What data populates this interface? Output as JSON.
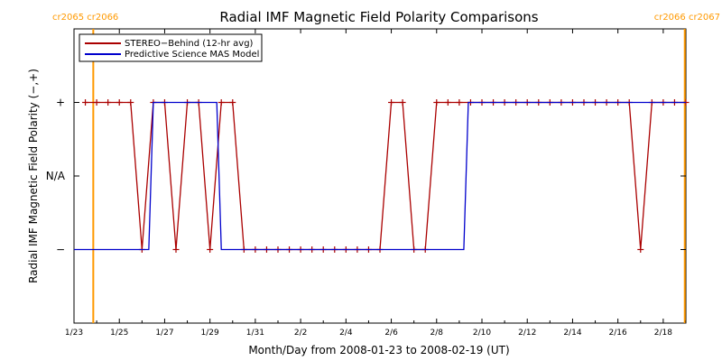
{
  "chart_data": {
    "type": "line",
    "title": "Radial IMF Magnetic Field Polarity Comparisons",
    "xlabel": "Month/Day from 2008-01-23 to 2008-02-19 (UT)",
    "ylabel": "Radial IMF Magnetic Field Polarity (−,+)",
    "x_unit": "days",
    "xlim": [
      0,
      27
    ],
    "ylim": [
      -2,
      2
    ],
    "x_ticks": [
      {
        "x": 0,
        "label": "1/23"
      },
      {
        "x": 2,
        "label": "1/25"
      },
      {
        "x": 4,
        "label": "1/27"
      },
      {
        "x": 6,
        "label": "1/29"
      },
      {
        "x": 8,
        "label": "1/31"
      },
      {
        "x": 10,
        "label": "2/2"
      },
      {
        "x": 12,
        "label": "2/4"
      },
      {
        "x": 14,
        "label": "2/6"
      },
      {
        "x": 16,
        "label": "2/8"
      },
      {
        "x": 18,
        "label": "2/10"
      },
      {
        "x": 20,
        "label": "2/12"
      },
      {
        "x": 22,
        "label": "2/14"
      },
      {
        "x": 24,
        "label": "2/16"
      },
      {
        "x": 26,
        "label": "2/18"
      }
    ],
    "y_ticks": [
      {
        "y": 1,
        "label": "+"
      },
      {
        "y": 0,
        "label": "N/A"
      },
      {
        "y": -1,
        "label": "−"
      }
    ],
    "carrington_markers": [
      {
        "x": 0.85,
        "label": "cr2065 cr2066",
        "color": "#ff9900",
        "label_side": "left"
      },
      {
        "x": 26.95,
        "label": "cr2066 cr2067",
        "color": "#ff9900",
        "label_side": "right"
      }
    ],
    "series": [
      {
        "name": "STEREO−Behind (12-hr avg)",
        "color": "#aa0000",
        "markers": true,
        "x": [
          0.5,
          1.0,
          1.5,
          2.0,
          2.5,
          3.0,
          3.5,
          4.0,
          4.5,
          5.0,
          5.5,
          6.0,
          6.5,
          7.0,
          7.5,
          8.0,
          8.5,
          9.0,
          9.5,
          10.0,
          10.5,
          11.0,
          11.5,
          12.0,
          12.5,
          13.0,
          13.5,
          14.0,
          14.5,
          15.0,
          15.5,
          16.0,
          16.5,
          17.0,
          17.5,
          18.0,
          18.5,
          19.0,
          19.5,
          20.0,
          20.5,
          21.0,
          21.5,
          22.0,
          22.5,
          23.0,
          23.5,
          24.0,
          24.5,
          25.0,
          25.5,
          26.0,
          26.5,
          27.0
        ],
        "y": [
          1,
          1,
          1,
          1,
          1,
          -1,
          1,
          1,
          -1,
          1,
          1,
          -1,
          1,
          1,
          -1,
          -1,
          -1,
          -1,
          -1,
          -1,
          -1,
          -1,
          -1,
          -1,
          -1,
          -1,
          -1,
          1,
          1,
          -1,
          -1,
          1,
          1,
          1,
          1,
          1,
          1,
          1,
          1,
          1,
          1,
          1,
          1,
          1,
          1,
          1,
          1,
          1,
          1,
          -1,
          1,
          1,
          1,
          1
        ]
      },
      {
        "name": "Predictive Science MAS Model",
        "color": "#0000cc",
        "markers": false,
        "x": [
          0,
          3.3,
          3.5,
          6.3,
          6.5,
          17.2,
          17.4,
          27
        ],
        "y": [
          -1,
          -1,
          1,
          1,
          -1,
          -1,
          1,
          1
        ]
      }
    ],
    "legend_position": "top-left",
    "grid": false
  }
}
